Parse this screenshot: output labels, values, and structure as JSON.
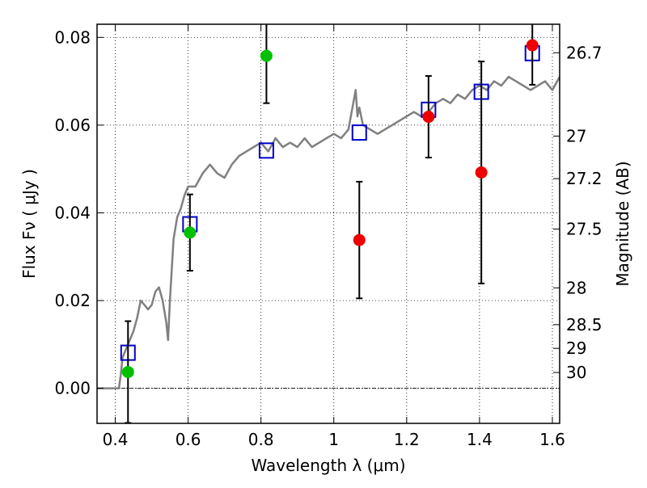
{
  "chart_data": {
    "type": "scatter",
    "title": "",
    "xlabel": "Wavelength  λ (μm)",
    "ylabel": "Flux  Fν  ( μJy )",
    "y2label": "Magnitude (AB)",
    "xlim": [
      0.35,
      1.62
    ],
    "ylim": [
      -0.008,
      0.083
    ],
    "grid": true,
    "x_ticks": [
      0.4,
      0.6,
      0.8,
      1.0,
      1.2,
      1.4,
      1.6
    ],
    "x_tick_labels": [
      "0.4",
      "0.6",
      "0.8",
      "1",
      "1.2",
      "1.4",
      "1.6"
    ],
    "y_ticks": [
      0.0,
      0.02,
      0.04,
      0.06,
      0.08
    ],
    "y_tick_labels": [
      "0.00",
      "0.02",
      "0.04",
      "0.06",
      "0.08"
    ],
    "y2_ticks": [
      {
        "label": "26.7",
        "flux": 0.0765
      },
      {
        "label": "27",
        "flux": 0.0575
      },
      {
        "label": "27.2",
        "flux": 0.0478
      },
      {
        "label": "27.5",
        "flux": 0.0363
      },
      {
        "label": "28",
        "flux": 0.0229
      },
      {
        "label": "28.5",
        "flux": 0.0145
      },
      {
        "label": "29",
        "flux": 0.0091
      },
      {
        "label": "30",
        "flux": 0.0036
      }
    ],
    "series": [
      {
        "kind": "line",
        "color": "#808080",
        "x": [
          0.35,
          0.41,
          0.415,
          0.42,
          0.43,
          0.44,
          0.45,
          0.46,
          0.47,
          0.48,
          0.49,
          0.5,
          0.51,
          0.52,
          0.53,
          0.54,
          0.545,
          0.55,
          0.56,
          0.57,
          0.58,
          0.59,
          0.6,
          0.62,
          0.64,
          0.66,
          0.68,
          0.7,
          0.72,
          0.74,
          0.76,
          0.78,
          0.8,
          0.82,
          0.84,
          0.86,
          0.88,
          0.9,
          0.92,
          0.94,
          0.96,
          0.98,
          1.0,
          1.02,
          1.04,
          1.06,
          1.065,
          1.07,
          1.08,
          1.1,
          1.12,
          1.14,
          1.16,
          1.18,
          1.2,
          1.22,
          1.24,
          1.26,
          1.28,
          1.3,
          1.32,
          1.34,
          1.36,
          1.38,
          1.4,
          1.42,
          1.44,
          1.46,
          1.48,
          1.5,
          1.52,
          1.54,
          1.56,
          1.58,
          1.6,
          1.62
        ],
        "y": [
          0.0,
          0.0,
          0.003,
          0.007,
          0.009,
          0.011,
          0.013,
          0.016,
          0.02,
          0.019,
          0.018,
          0.019,
          0.022,
          0.023,
          0.02,
          0.015,
          0.011,
          0.02,
          0.034,
          0.039,
          0.041,
          0.044,
          0.046,
          0.046,
          0.049,
          0.051,
          0.049,
          0.048,
          0.051,
          0.053,
          0.054,
          0.055,
          0.056,
          0.054,
          0.057,
          0.055,
          0.056,
          0.055,
          0.057,
          0.055,
          0.056,
          0.057,
          0.058,
          0.057,
          0.059,
          0.068,
          0.062,
          0.064,
          0.06,
          0.059,
          0.058,
          0.059,
          0.06,
          0.061,
          0.062,
          0.063,
          0.062,
          0.063,
          0.065,
          0.066,
          0.065,
          0.067,
          0.066,
          0.068,
          0.069,
          0.068,
          0.07,
          0.069,
          0.071,
          0.07,
          0.069,
          0.068,
          0.069,
          0.07,
          0.068,
          0.071
        ]
      },
      {
        "kind": "markers",
        "marker": "square",
        "color": "#0000cc",
        "x": [
          0.435,
          0.605,
          0.815,
          1.07,
          1.26,
          1.405,
          1.545
        ],
        "y": [
          0.0081,
          0.0374,
          0.0542,
          0.0583,
          0.0635,
          0.0676,
          0.0764
        ]
      },
      {
        "kind": "markers",
        "marker": "circle",
        "color": "#00c000",
        "x": [
          0.435,
          0.605,
          0.815
        ],
        "y": [
          0.0037,
          0.0355,
          0.0758
        ],
        "err": [
          0.0116,
          0.0087,
          0.0108
        ]
      },
      {
        "kind": "markers",
        "marker": "circle",
        "color": "#ee0000",
        "x": [
          1.07,
          1.26,
          1.405,
          1.545
        ],
        "y": [
          0.0338,
          0.0619,
          0.0492,
          0.0782
        ],
        "err": [
          0.0133,
          0.0093,
          0.0253,
          0.009
        ]
      }
    ]
  }
}
